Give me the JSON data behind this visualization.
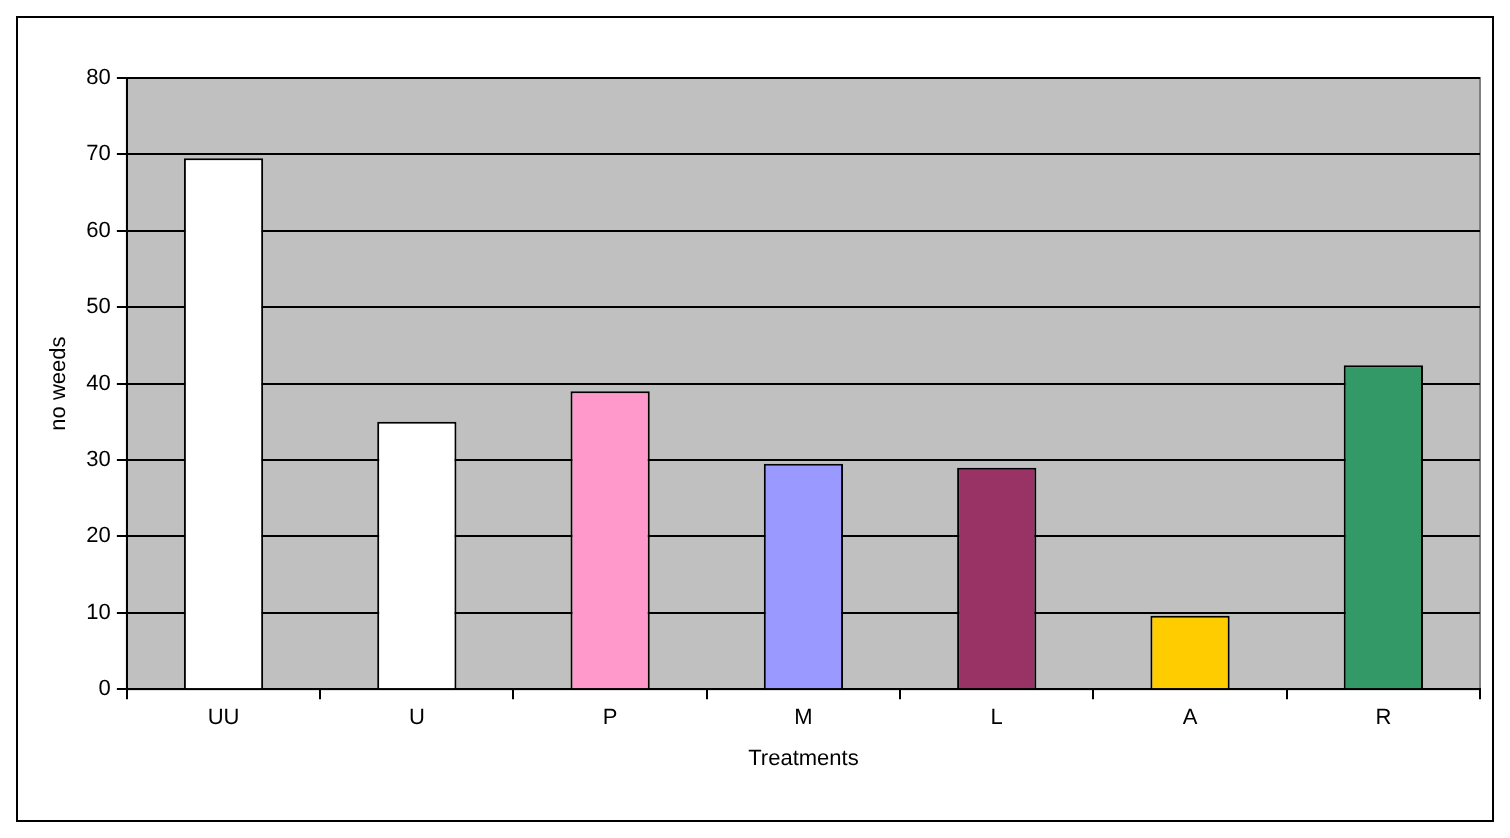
{
  "chart_data": {
    "type": "bar",
    "xlabel": "Treatments",
    "ylabel": "no weeds",
    "categories": [
      "UU",
      "U",
      "P",
      "M",
      "L",
      "A",
      "R"
    ],
    "values": [
      69.5,
      35,
      39,
      29.5,
      29,
      9.6,
      42.4
    ],
    "colors": [
      "#ffffff",
      "#ffffff",
      "#ff99cc",
      "#9999ff",
      "#993366",
      "#ffcc00",
      "#339966"
    ],
    "ylim": [
      0,
      80
    ],
    "yticks": [
      0,
      10,
      20,
      30,
      40,
      50,
      60,
      70,
      80
    ],
    "grid": "y",
    "legend": false
  }
}
